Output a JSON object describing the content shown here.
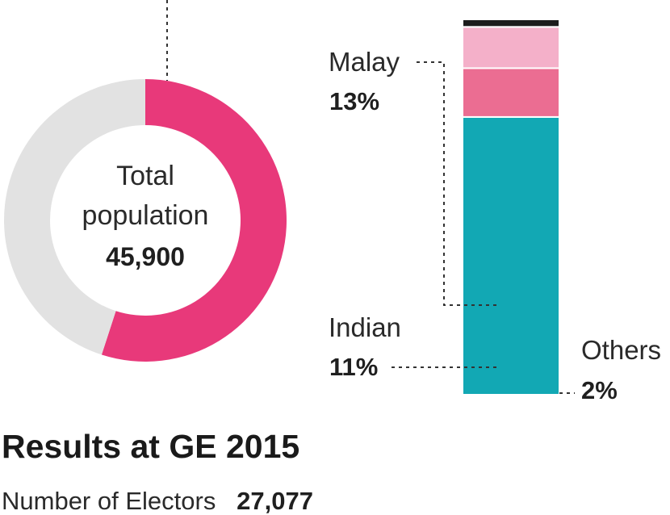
{
  "chart_data": [
    {
      "type": "pie",
      "variant": "donut",
      "center_text": {
        "line1": "Total",
        "line2": "population",
        "value": "45,900"
      },
      "slices": [
        {
          "label": "",
          "value": 0.55,
          "color": "#e8397a"
        },
        {
          "label": "",
          "value": 0.45,
          "color": "#e2e2e2"
        }
      ]
    },
    {
      "type": "bar",
      "variant": "stacked-100",
      "segments": [
        {
          "label": "",
          "value": 74,
          "color": "#12a8b4"
        },
        {
          "label": "Malay",
          "value_text": "13%",
          "value": 13,
          "color": "#eb6d92"
        },
        {
          "label": "Indian",
          "value_text": "11%",
          "value": 11,
          "color": "#f4b0c9"
        },
        {
          "label": "Others",
          "value_text": "2%",
          "value": 2,
          "color": "#1c1c1c"
        }
      ]
    }
  ],
  "results": {
    "title": "Results at GE 2015",
    "electors_label": "Number of Electors",
    "electors_value": "27,077"
  }
}
